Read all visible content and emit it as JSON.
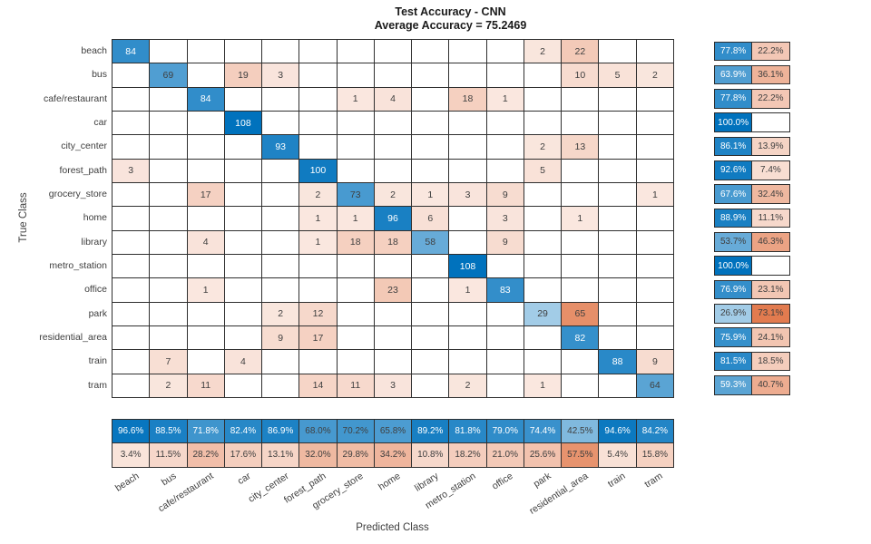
{
  "title": {
    "line1": "Test Accuracy - CNN",
    "line2": "Average Accuracy = 75.2469"
  },
  "axes": {
    "x_label": "Predicted Class",
    "y_label": "True Class"
  },
  "chart_data": {
    "type": "heatmap",
    "title": "Test Accuracy - CNN",
    "subtitle": "Average Accuracy = 75.2469",
    "xlabel": "Predicted Class",
    "ylabel": "True Class",
    "categories": [
      "beach",
      "bus",
      "cafe/restaurant",
      "car",
      "city_center",
      "forest_path",
      "grocery_store",
      "home",
      "library",
      "metro_station",
      "office",
      "park",
      "residential_area",
      "train",
      "tram"
    ],
    "matrix": [
      [
        84,
        0,
        0,
        0,
        0,
        0,
        0,
        0,
        0,
        0,
        0,
        2,
        22,
        0,
        0
      ],
      [
        0,
        69,
        0,
        19,
        3,
        0,
        0,
        0,
        0,
        0,
        0,
        0,
        10,
        5,
        2
      ],
      [
        0,
        0,
        84,
        0,
        0,
        0,
        1,
        4,
        0,
        18,
        1,
        0,
        0,
        0,
        0
      ],
      [
        0,
        0,
        0,
        108,
        0,
        0,
        0,
        0,
        0,
        0,
        0,
        0,
        0,
        0,
        0
      ],
      [
        0,
        0,
        0,
        0,
        93,
        0,
        0,
        0,
        0,
        0,
        0,
        2,
        13,
        0,
        0
      ],
      [
        3,
        0,
        0,
        0,
        0,
        100,
        0,
        0,
        0,
        0,
        0,
        5,
        0,
        0,
        0
      ],
      [
        0,
        0,
        17,
        0,
        0,
        2,
        73,
        2,
        1,
        3,
        9,
        0,
        0,
        0,
        1
      ],
      [
        0,
        0,
        0,
        0,
        0,
        1,
        1,
        96,
        6,
        0,
        3,
        0,
        1,
        0,
        0
      ],
      [
        0,
        0,
        4,
        0,
        0,
        1,
        18,
        18,
        58,
        0,
        9,
        0,
        0,
        0,
        0
      ],
      [
        0,
        0,
        0,
        0,
        0,
        0,
        0,
        0,
        0,
        108,
        0,
        0,
        0,
        0,
        0
      ],
      [
        0,
        0,
        1,
        0,
        0,
        0,
        0,
        23,
        0,
        1,
        83,
        0,
        0,
        0,
        0
      ],
      [
        0,
        0,
        0,
        0,
        2,
        12,
        0,
        0,
        0,
        0,
        0,
        29,
        65,
        0,
        0
      ],
      [
        0,
        0,
        0,
        0,
        9,
        17,
        0,
        0,
        0,
        0,
        0,
        0,
        82,
        0,
        0
      ],
      [
        0,
        7,
        0,
        4,
        0,
        0,
        0,
        0,
        0,
        0,
        0,
        0,
        0,
        88,
        9
      ],
      [
        0,
        2,
        11,
        0,
        0,
        14,
        11,
        3,
        0,
        2,
        0,
        1,
        0,
        0,
        64
      ]
    ],
    "row_summary": {
      "correct": [
        77.8,
        63.9,
        77.8,
        100.0,
        86.1,
        92.6,
        67.6,
        88.9,
        53.7,
        100.0,
        76.9,
        26.9,
        75.9,
        81.5,
        59.3
      ],
      "incorrect": [
        22.2,
        36.1,
        22.2,
        null,
        13.9,
        7.4,
        32.4,
        11.1,
        46.3,
        null,
        23.1,
        73.1,
        24.1,
        18.5,
        40.7
      ]
    },
    "col_summary": {
      "correct": [
        96.6,
        88.5,
        71.8,
        82.4,
        86.9,
        68.0,
        70.2,
        65.8,
        89.2,
        81.8,
        79.0,
        74.4,
        42.5,
        94.6,
        84.2
      ],
      "incorrect": [
        3.4,
        11.5,
        28.2,
        17.6,
        13.1,
        32.0,
        29.8,
        34.2,
        10.8,
        18.2,
        21.0,
        25.6,
        57.5,
        5.4,
        15.8
      ]
    },
    "colors": {
      "diagonal": "#0072BD",
      "off_diagonal": "#D95319",
      "cell_text_dark": "#404040",
      "cell_text_light": "#FFFFFF"
    },
    "legend_position": "none",
    "grid": true
  }
}
